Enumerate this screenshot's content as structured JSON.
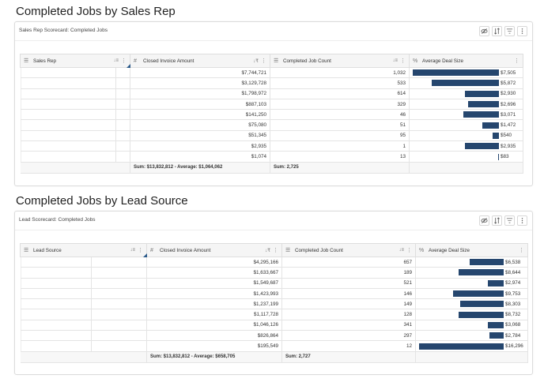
{
  "sections": [
    {
      "title": "Completed Jobs by Sales Rep",
      "card_title": "Sales Rep Scorecard: Completed Jobs",
      "columns": {
        "name": "Sales Rep",
        "invoice": "Closed Invoice Amount",
        "count": "Completed Job Count",
        "deal": "Average Deal Size"
      },
      "rows": [
        {
          "invoice": "$7,744,721",
          "count": "1,032",
          "deal": "$7,505",
          "deal_value": 7505
        },
        {
          "invoice": "$3,129,728",
          "count": "533",
          "deal": "$5,872",
          "deal_value": 5872
        },
        {
          "invoice": "$1,798,972",
          "count": "614",
          "deal": "$2,930",
          "deal_value": 2930
        },
        {
          "invoice": "$887,103",
          "count": "329",
          "deal": "$2,696",
          "deal_value": 2696
        },
        {
          "invoice": "$141,250",
          "count": "46",
          "deal": "$3,071",
          "deal_value": 3071
        },
        {
          "invoice": "$75,080",
          "count": "51",
          "deal": "$1,472",
          "deal_value": 1472
        },
        {
          "invoice": "$51,345",
          "count": "95",
          "deal": "$540",
          "deal_value": 540
        },
        {
          "invoice": "$2,935",
          "count": "1",
          "deal": "$2,935",
          "deal_value": 2935
        },
        {
          "invoice": "$1,074",
          "count": "13",
          "deal": "$83",
          "deal_value": 83
        }
      ],
      "footer": {
        "invoice": "Sum: $13,832,812 - Average: $1,064,062",
        "count": "Sum: 2,725"
      },
      "bar_max": 7505
    },
    {
      "title": "Completed Jobs by Lead Source",
      "card_title": "Lead Scorecard: Completed Jobs",
      "columns": {
        "name": "Lead Source",
        "invoice": "Closed Invoice Amount",
        "count": "Completed Job Count",
        "deal": "Average Deal Size"
      },
      "rows": [
        {
          "invoice": "$4,295,166",
          "count": "657",
          "deal": "$6,538",
          "deal_value": 6538
        },
        {
          "invoice": "$1,633,667",
          "count": "189",
          "deal": "$8,644",
          "deal_value": 8644
        },
        {
          "invoice": "$1,549,687",
          "count": "521",
          "deal": "$2,974",
          "deal_value": 2974
        },
        {
          "invoice": "$1,423,993",
          "count": "146",
          "deal": "$9,753",
          "deal_value": 9753
        },
        {
          "invoice": "$1,237,199",
          "count": "149",
          "deal": "$8,303",
          "deal_value": 8303
        },
        {
          "invoice": "$1,117,728",
          "count": "128",
          "deal": "$8,732",
          "deal_value": 8732
        },
        {
          "invoice": "$1,046,126",
          "count": "341",
          "deal": "$3,068",
          "deal_value": 3068
        },
        {
          "invoice": "$826,864",
          "count": "297",
          "deal": "$2,784",
          "deal_value": 2784
        },
        {
          "invoice": "$195,549",
          "count": "12",
          "deal": "$16,296",
          "deal_value": 16296
        }
      ],
      "footer": {
        "invoice": "Sum: $13,832,812 - Average: $658,705",
        "count": "Sum: 2,727"
      },
      "bar_max": 16296
    }
  ],
  "icons": {
    "tools": [
      "hide-icon",
      "sort-icon",
      "filter-icon",
      "more-icon"
    ],
    "column_text": "list-icon",
    "column_number": "hash-icon",
    "column_bar": "percent-icon"
  },
  "colors": {
    "bar": "#25466e",
    "header_bg": "#f5f5f5",
    "corner_marker": "#2b5a8a"
  }
}
